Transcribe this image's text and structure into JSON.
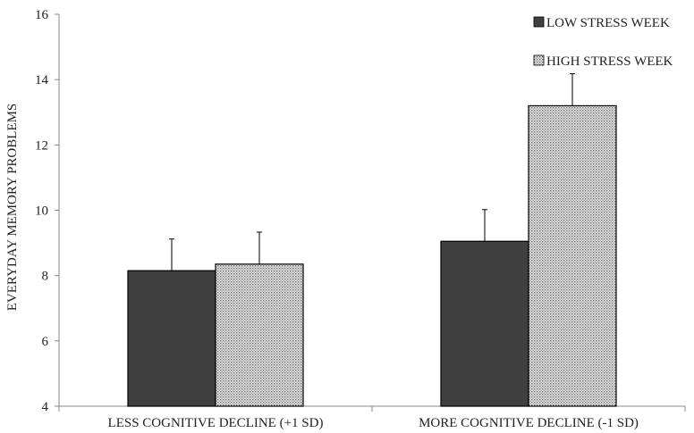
{
  "chart_data": {
    "type": "bar",
    "title": "",
    "xlabel": "",
    "ylabel": "EVERYDAY MEMORY PROBLEMS",
    "ylim": [
      4,
      16
    ],
    "yticks": [
      4,
      6,
      8,
      10,
      12,
      14,
      16
    ],
    "categories": [
      "LESS COGNITIVE DECLINE (+1 SD)",
      "MORE COGNITIVE DECLINE (-1 SD)"
    ],
    "series": [
      {
        "name": "LOW STRESS WEEK",
        "values": [
          8.15,
          9.05
        ],
        "error": [
          0.97,
          0.97
        ],
        "color": "#404040",
        "pattern": "solid"
      },
      {
        "name": "HIGH STRESS WEEK",
        "values": [
          8.35,
          13.2
        ],
        "error": [
          0.98,
          0.98
        ],
        "color": "#c8c8c8",
        "pattern": "dotted"
      }
    ],
    "legend_position": "top-right",
    "grid": false
  }
}
